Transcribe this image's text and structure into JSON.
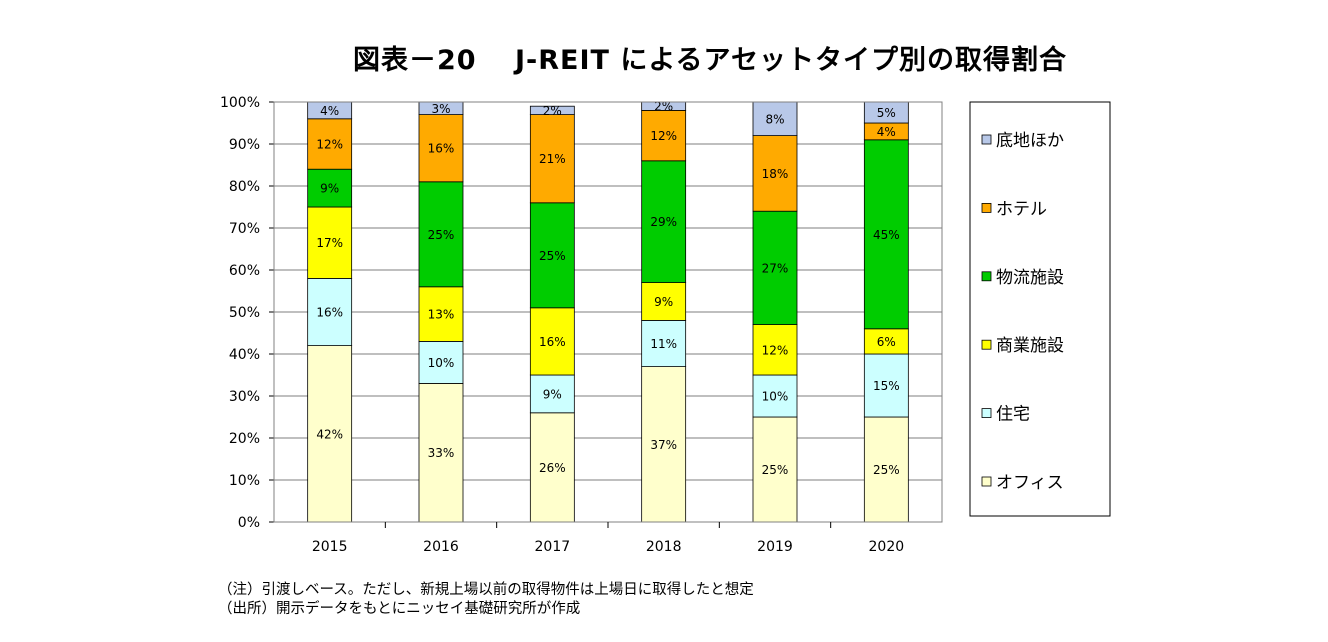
{
  "chart_data": {
    "type": "bar",
    "stacked": true,
    "title": "図表－20　 J-REIT によるアセットタイプ別の取得割合",
    "categories": [
      "2015",
      "2016",
      "2017",
      "2018",
      "2019",
      "2020"
    ],
    "ylim": [
      0,
      100
    ],
    "y_ticks": [
      "0%",
      "10%",
      "20%",
      "30%",
      "40%",
      "50%",
      "60%",
      "70%",
      "80%",
      "90%",
      "100%"
    ],
    "grid": true,
    "legend_position": "right",
    "series": [
      {
        "name": "オフィス",
        "color": "#ffffcc",
        "values": [
          42,
          33,
          26,
          37,
          25,
          25
        ],
        "labels": [
          "42%",
          "33%",
          "26%",
          "37%",
          "25%",
          "25%"
        ]
      },
      {
        "name": "住宅",
        "color": "#ccffff",
        "values": [
          16,
          10,
          9,
          11,
          10,
          15
        ],
        "labels": [
          "16%",
          "10%",
          "9%",
          "11%",
          "10%",
          "15%"
        ]
      },
      {
        "name": "商業施設",
        "color": "#ffff00",
        "values": [
          17,
          13,
          16,
          9,
          12,
          6
        ],
        "labels": [
          "17%",
          "13%",
          "16%",
          "9%",
          "12%",
          "6%"
        ]
      },
      {
        "name": "物流施設",
        "color": "#00cc00",
        "values": [
          9,
          25,
          25,
          29,
          27,
          45
        ],
        "labels": [
          "9%",
          "25%",
          "25%",
          "29%",
          "27%",
          "45%"
        ]
      },
      {
        "name": "ホテル",
        "color": "#ffaa00",
        "values": [
          12,
          16,
          21,
          12,
          18,
          4
        ],
        "labels": [
          "12%",
          "16%",
          "21%",
          "12%",
          "18%",
          "4%"
        ]
      },
      {
        "name": "底地ほか",
        "color": "#b8c8e8",
        "values": [
          4,
          3,
          2,
          2,
          8,
          5
        ],
        "labels": [
          "4%",
          "3%",
          "2%",
          "2%",
          "8%",
          "5%"
        ]
      }
    ],
    "notes": [
      "（注）引渡しベース。ただし、新規上場以前の取得物件は上場日に取得したと想定",
      "（出所）開示データをもとにニッセイ基礎研究所が作成"
    ]
  }
}
